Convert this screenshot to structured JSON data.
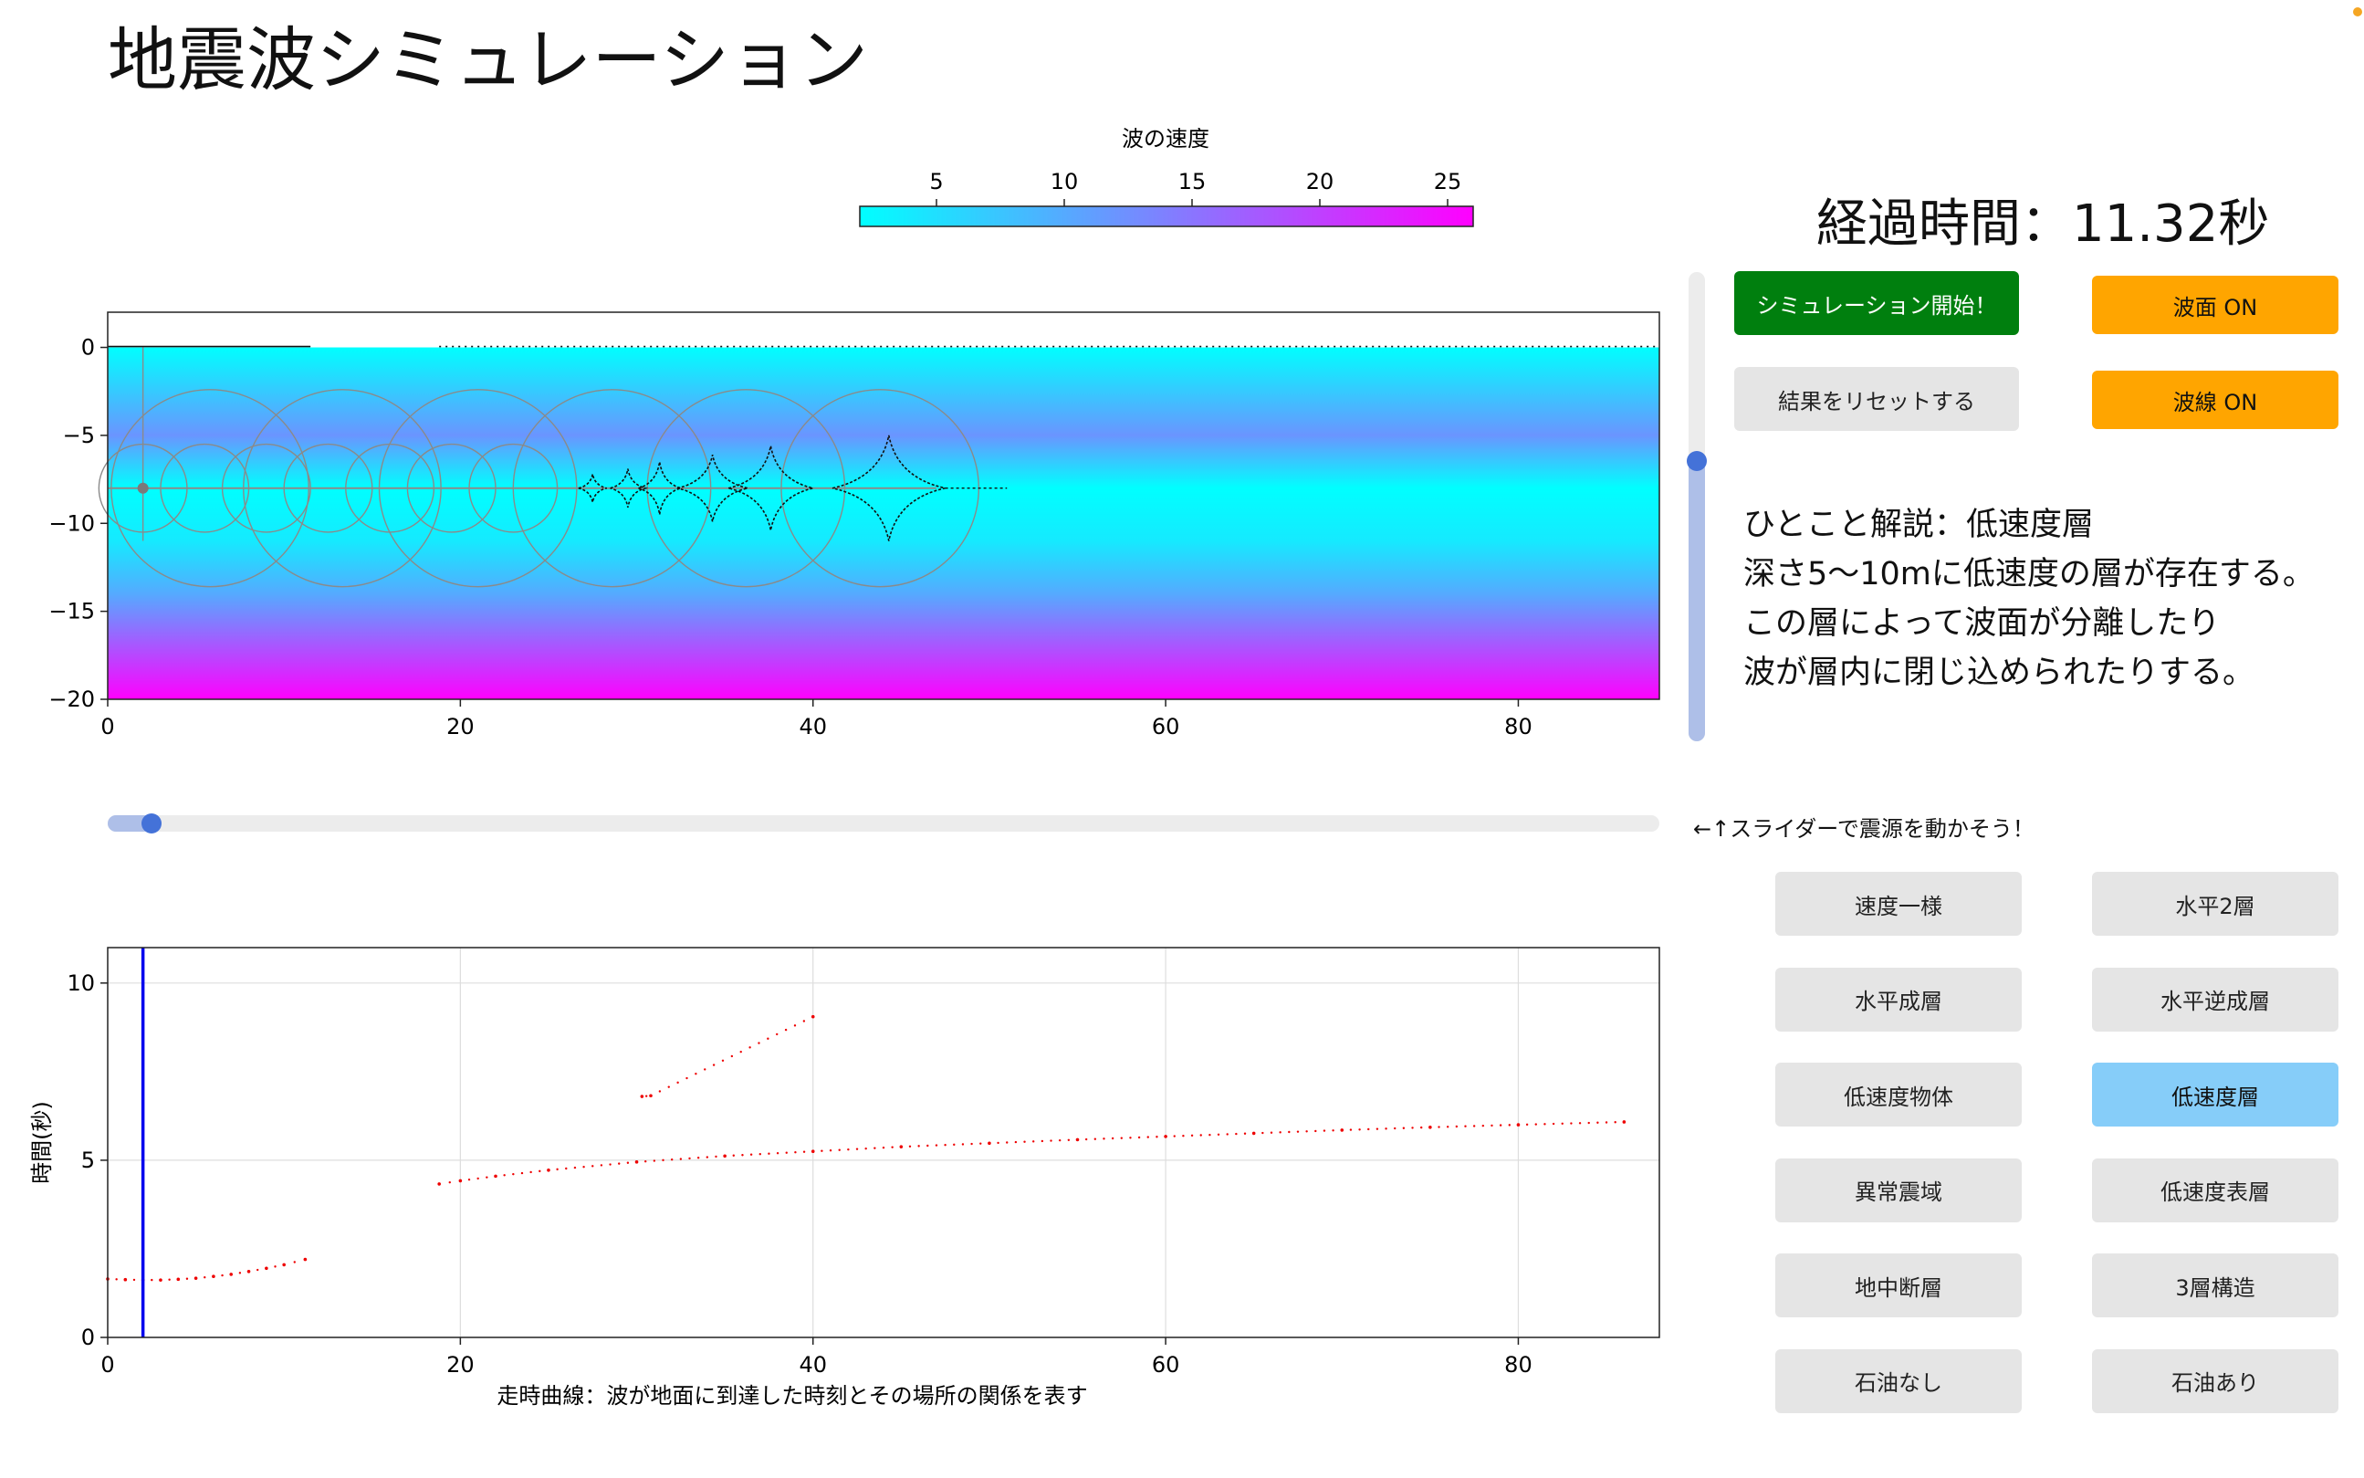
{
  "page": {
    "title": "地震波シミュレーション"
  },
  "colorbar": {
    "label": "波の速度",
    "ticks": [
      "5",
      "10",
      "15",
      "20",
      "25"
    ],
    "min": 2.0,
    "max": 26.0,
    "tick_values": [
      5,
      10,
      15,
      20,
      25
    ],
    "color_low": "#00ffff",
    "color_high": "#ff00ff"
  },
  "wave_panel": {
    "x_ticks": [
      "0",
      "20",
      "40",
      "60",
      "80"
    ],
    "y_ticks": [
      "0",
      "−5",
      "−10",
      "−15",
      "−20"
    ],
    "xlim": [
      0,
      88
    ],
    "ylim": [
      -20,
      2
    ],
    "source": {
      "x": 2,
      "depth": -8
    },
    "low_velocity_layer": [
      -5,
      -10
    ],
    "velocity_profile": [
      {
        "depth": 0,
        "v": 2
      },
      {
        "depth": -3,
        "v": 8
      },
      {
        "depth": -5,
        "v": 12
      },
      {
        "depth": -8,
        "v": 2
      },
      {
        "depth": -11,
        "v": 4
      },
      {
        "depth": -14,
        "v": 10
      },
      {
        "depth": -17,
        "v": 18
      },
      {
        "depth": -20,
        "v": 26
      }
    ],
    "rings": [
      {
        "x": 2,
        "r": 2.5
      },
      {
        "x": 5.5,
        "r": 2.5
      },
      {
        "x": 9,
        "r": 2.5
      },
      {
        "x": 12.5,
        "r": 2.5
      },
      {
        "x": 16,
        "r": 2.5
      },
      {
        "x": 19.5,
        "r": 2.5
      },
      {
        "x": 23,
        "r": 2.5
      },
      {
        "x": 5.8,
        "r": 5.6
      },
      {
        "x": 13.3,
        "r": 5.6
      },
      {
        "x": 21,
        "r": 5.6
      },
      {
        "x": 28.6,
        "r": 5.6
      },
      {
        "x": 36.2,
        "r": 5.6
      },
      {
        "x": 43.8,
        "r": 5.6
      }
    ],
    "cusps": [
      {
        "x": 27.5,
        "h": 0.8,
        "w": 0.8
      },
      {
        "x": 29.5,
        "h": 1.1,
        "w": 1.0
      },
      {
        "x": 31.3,
        "h": 1.5,
        "w": 1.2
      },
      {
        "x": 34.3,
        "h": 1.9,
        "w": 2.0
      },
      {
        "x": 37.6,
        "h": 2.4,
        "w": 2.4
      },
      {
        "x": 44.3,
        "h": 3.0,
        "w": 3.2
      }
    ],
    "wave_tail_end": 51
  },
  "travel_time_panel": {
    "xlabel": "走時曲線：波が地面に到達した時刻とその場所の関係を表す",
    "ylabel": "時間(秒)",
    "x_ticks": [
      "0",
      "20",
      "40",
      "60",
      "80"
    ],
    "y_ticks": [
      "0",
      "5",
      "10"
    ],
    "xlim": [
      0,
      88
    ],
    "ylim": [
      0,
      11
    ],
    "source_line_x": 2,
    "source_line_color": "#0000ee",
    "point_color": "#ee0000"
  },
  "chart_data": [
    {
      "type": "scatter",
      "title": "",
      "xlabel": "走時曲線：波が地面に到達した時刻とその場所の関係を表す",
      "ylabel": "時間(秒)",
      "xlim": [
        0,
        88
      ],
      "ylim": [
        0,
        11
      ],
      "grid": true,
      "series": [
        {
          "x": [
            0,
            1,
            2,
            3,
            4,
            5,
            6,
            7,
            8,
            9,
            10,
            11.2
          ],
          "y": [
            1.65,
            1.63,
            1.62,
            1.62,
            1.64,
            1.67,
            1.72,
            1.78,
            1.86,
            1.95,
            2.05,
            2.2
          ]
        },
        {
          "x": [
            18.8,
            20,
            22,
            25,
            30,
            35,
            40,
            45,
            50,
            55,
            60,
            65,
            70,
            75,
            80,
            86
          ],
          "y": [
            4.33,
            4.42,
            4.55,
            4.72,
            4.95,
            5.12,
            5.25,
            5.38,
            5.48,
            5.58,
            5.67,
            5.76,
            5.85,
            5.93,
            6.0,
            6.08
          ]
        },
        {
          "x": [
            30.3,
            30.8,
            40
          ],
          "y": [
            6.8,
            6.82,
            9.05
          ]
        }
      ]
    }
  ],
  "elapsed": {
    "text": "経過時間：11.32秒"
  },
  "buttons": {
    "start": "シミュレーション開始！",
    "reset": "結果をリセットする",
    "wavefront": "波面 ON",
    "ray": "波線 ON"
  },
  "explanation": {
    "lines": [
      "ひとこと解説：低速度層",
      "深さ5〜10mに低速度の層が存在する。",
      "この層によって波面が分離したり",
      "波が層内に閉じ込められたりする。"
    ]
  },
  "slider_hint": "←↑スライダーで震源を動かそう！",
  "sliders": {
    "source_depth_fraction": 0.37,
    "source_x_fraction": 0.023
  },
  "presets": [
    "速度一様",
    "水平2層",
    "水平成層",
    "水平逆成層",
    "低速度物体",
    "低速度層",
    "異常震域",
    "低速度表層",
    "地中断層",
    "3層構造",
    "石油なし",
    "石油あり"
  ],
  "active_preset_index": 5,
  "colors": {
    "green": "#007f0e",
    "orange": "#ffa500",
    "active": "#86cdf9",
    "button_gray": "#e5e5e5",
    "slider_knob": "#4472d8"
  }
}
